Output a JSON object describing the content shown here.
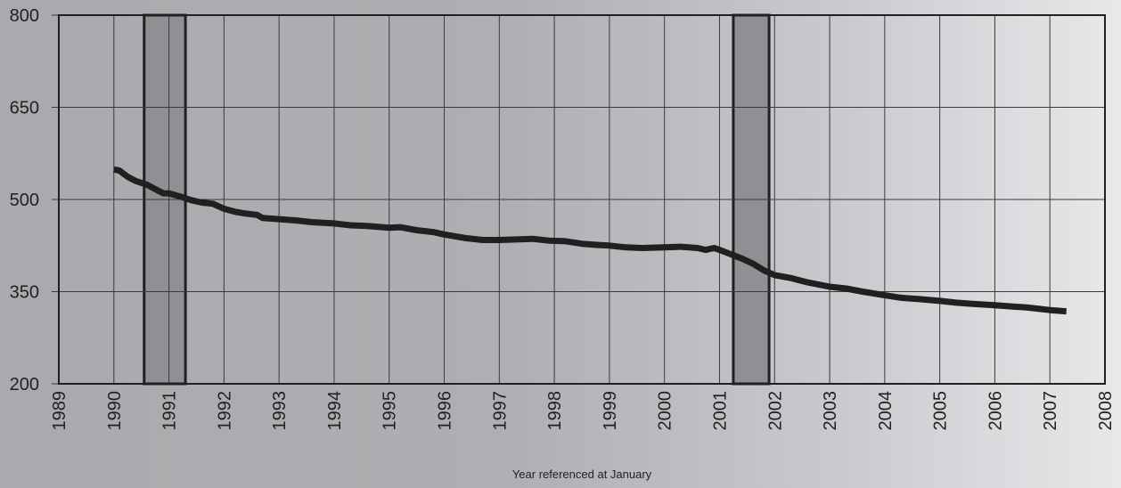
{
  "chart_data": {
    "type": "line",
    "title": "",
    "xlabel": "Year referenced at January",
    "ylabel": "",
    "x_ticks": [
      "1989",
      "1990",
      "1991",
      "1992",
      "1993",
      "1994",
      "1995",
      "1996",
      "1997",
      "1998",
      "1999",
      "2000",
      "2001",
      "2002",
      "2003",
      "2004",
      "2005",
      "2006",
      "2007",
      "2008"
    ],
    "y_ticks": [
      "200",
      "350",
      "500",
      "650",
      "800"
    ],
    "xlim": [
      1989,
      2008
    ],
    "ylim": [
      200,
      800
    ],
    "grid": true,
    "shaded_periods": [
      {
        "start": 1990.55,
        "end": 1991.3
      },
      {
        "start": 2001.25,
        "end": 2001.9
      }
    ],
    "series": [
      {
        "color": "#231f20",
        "points": [
          [
            1990.0,
            549
          ],
          [
            1990.1,
            547
          ],
          [
            1990.25,
            537
          ],
          [
            1990.4,
            530
          ],
          [
            1990.6,
            524
          ],
          [
            1990.75,
            517
          ],
          [
            1990.9,
            510
          ],
          [
            1991.0,
            510
          ],
          [
            1991.2,
            505
          ],
          [
            1991.4,
            499
          ],
          [
            1991.6,
            495
          ],
          [
            1991.8,
            493
          ],
          [
            1992.0,
            485
          ],
          [
            1992.2,
            480
          ],
          [
            1992.4,
            477
          ],
          [
            1992.6,
            475
          ],
          [
            1992.7,
            470
          ],
          [
            1993.0,
            468
          ],
          [
            1993.3,
            466
          ],
          [
            1993.6,
            463
          ],
          [
            1994.0,
            461
          ],
          [
            1994.3,
            458
          ],
          [
            1994.6,
            457
          ],
          [
            1995.0,
            454
          ],
          [
            1995.2,
            455
          ],
          [
            1995.5,
            450
          ],
          [
            1995.8,
            447
          ],
          [
            1996.0,
            443
          ],
          [
            1996.2,
            440
          ],
          [
            1996.4,
            437
          ],
          [
            1996.7,
            434
          ],
          [
            1997.0,
            434
          ],
          [
            1997.3,
            435
          ],
          [
            1997.6,
            436
          ],
          [
            1997.9,
            433
          ],
          [
            1998.2,
            432
          ],
          [
            1998.5,
            428
          ],
          [
            1998.8,
            426
          ],
          [
            1999.0,
            425
          ],
          [
            1999.3,
            422
          ],
          [
            1999.6,
            421
          ],
          [
            2000.0,
            422
          ],
          [
            2000.3,
            423
          ],
          [
            2000.6,
            421
          ],
          [
            2000.75,
            418
          ],
          [
            2000.9,
            421
          ],
          [
            2001.0,
            418
          ],
          [
            2001.2,
            411
          ],
          [
            2001.4,
            404
          ],
          [
            2001.6,
            396
          ],
          [
            2001.8,
            385
          ],
          [
            2002.0,
            377
          ],
          [
            2002.3,
            372
          ],
          [
            2002.6,
            365
          ],
          [
            2003.0,
            358
          ],
          [
            2003.3,
            355
          ],
          [
            2003.6,
            350
          ],
          [
            2004.0,
            344
          ],
          [
            2004.3,
            340
          ],
          [
            2004.6,
            338
          ],
          [
            2005.0,
            335
          ],
          [
            2005.3,
            332
          ],
          [
            2005.6,
            330
          ],
          [
            2006.0,
            328
          ],
          [
            2006.3,
            326
          ],
          [
            2006.6,
            324
          ],
          [
            2007.0,
            320
          ],
          [
            2007.3,
            318
          ]
        ]
      }
    ]
  }
}
